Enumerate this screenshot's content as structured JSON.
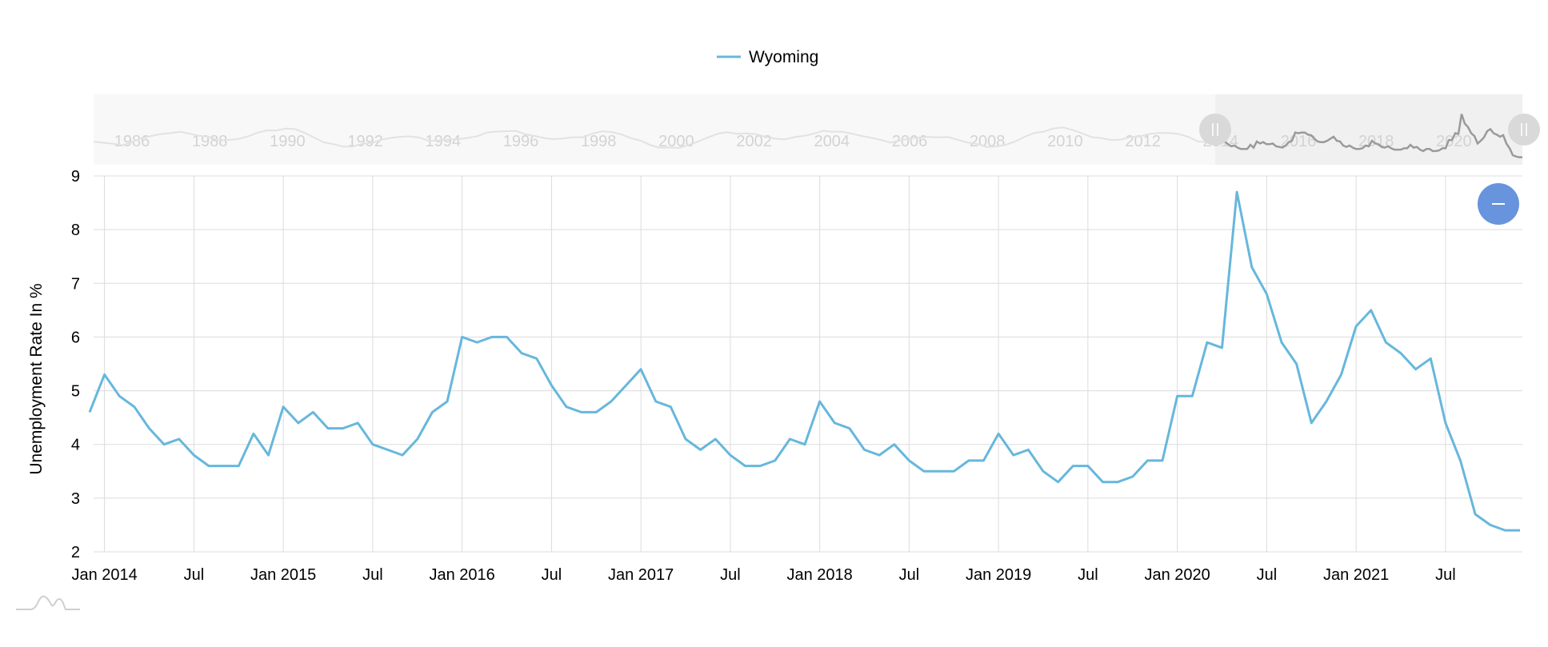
{
  "chart_data": {
    "type": "line",
    "title": "",
    "xlabel": "",
    "ylabel": "Unemployment Rate In %",
    "ylim": [
      2,
      9
    ],
    "y_ticks": [
      2,
      3,
      4,
      5,
      6,
      7,
      8,
      9
    ],
    "x_ticks": [
      "Jan 2014",
      "Jul",
      "Jan 2015",
      "Jul",
      "Jan 2016",
      "Jul",
      "Jan 2017",
      "Jul",
      "Jan 2018",
      "Jul",
      "Jan 2019",
      "Jul",
      "Jan 2020",
      "Jul",
      "Jan 2021",
      "Jul"
    ],
    "grid": true,
    "legend_position": "top-center",
    "series": [
      {
        "name": "Wyoming",
        "color": "#67b7dc",
        "x_start": "2013-12",
        "x_end": "2021-12",
        "values": [
          4.6,
          5.3,
          4.9,
          4.7,
          4.3,
          4.0,
          4.1,
          3.8,
          3.6,
          3.6,
          3.6,
          4.2,
          3.8,
          4.7,
          4.4,
          4.6,
          4.3,
          4.3,
          4.4,
          4.0,
          3.9,
          3.8,
          4.1,
          4.6,
          4.8,
          6.0,
          5.9,
          6.0,
          6.0,
          5.7,
          5.6,
          5.1,
          4.7,
          4.6,
          4.6,
          4.8,
          5.1,
          5.4,
          4.8,
          4.7,
          4.1,
          3.9,
          4.1,
          3.8,
          3.6,
          3.6,
          3.7,
          4.1,
          4.0,
          4.8,
          4.4,
          4.3,
          3.9,
          3.8,
          4.0,
          3.7,
          3.5,
          3.5,
          3.5,
          3.7,
          3.7,
          4.2,
          3.8,
          3.9,
          3.5,
          3.3,
          3.6,
          3.6,
          3.3,
          3.3,
          3.4,
          3.7,
          3.7,
          4.9,
          4.9,
          5.9,
          5.8,
          8.7,
          7.3,
          6.8,
          5.9,
          5.5,
          4.4,
          4.8,
          5.3,
          6.2,
          6.5,
          5.9,
          5.7,
          5.4,
          5.6,
          4.4,
          3.7,
          2.7,
          2.5,
          2.4,
          2.4
        ]
      }
    ],
    "navigator": {
      "x_labels": [
        "1986",
        "1988",
        "1990",
        "1992",
        "1994",
        "1996",
        "1998",
        "2000",
        "2002",
        "2004",
        "2006",
        "2008",
        "2010",
        "2012",
        "2014",
        "2016",
        "2018",
        "2020"
      ],
      "selected_from": "2014",
      "selected_to": "2021"
    }
  }
}
